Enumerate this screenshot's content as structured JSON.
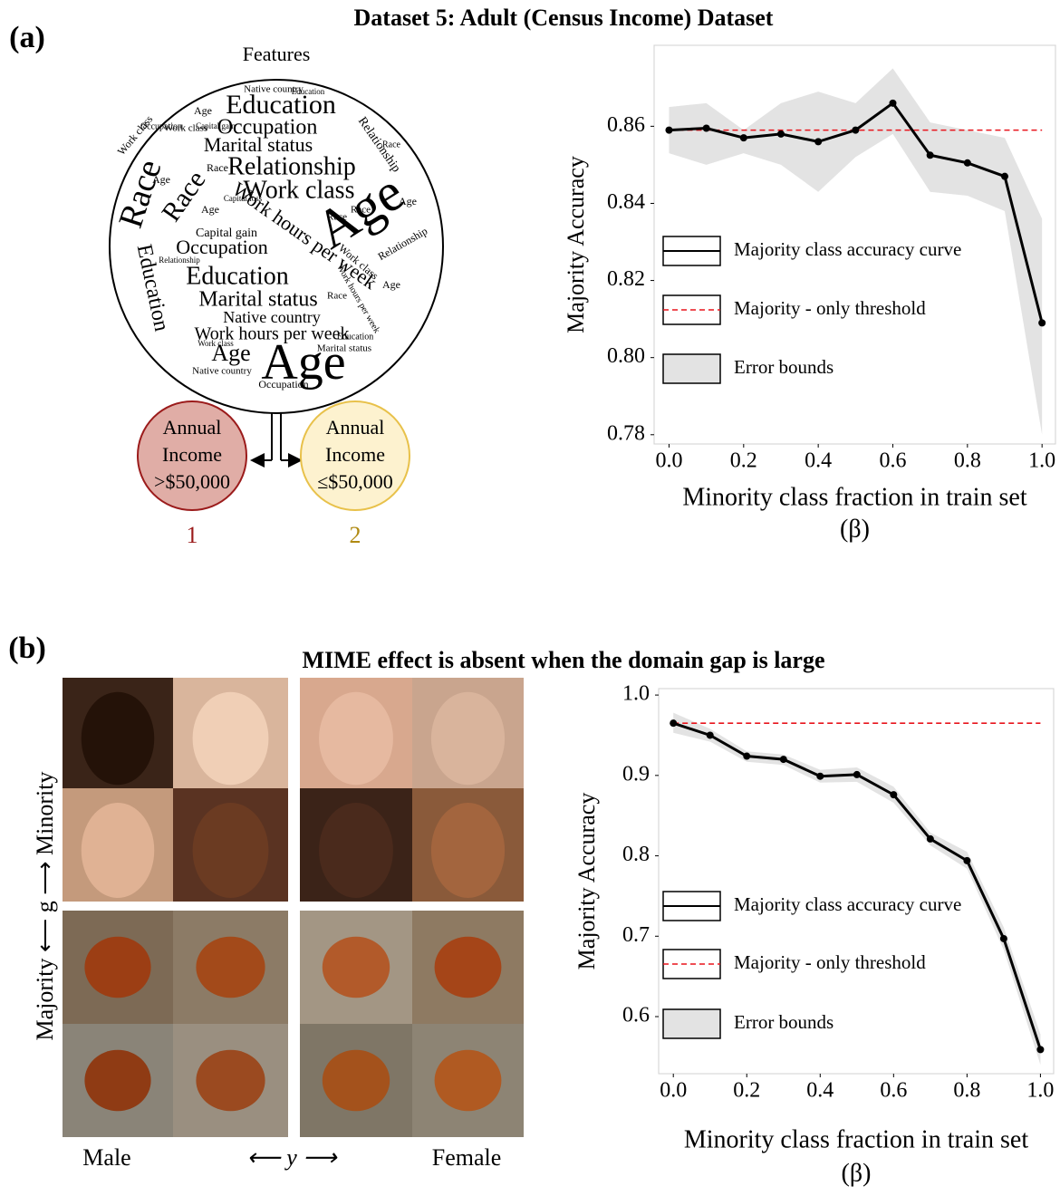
{
  "chart_data": [
    {
      "type": "line",
      "title": "Dataset 5: Adult (Census Income) Dataset",
      "ylabel": "Majority Accuracy",
      "xlabel": [
        "Minority class fraction in train set",
        "(β)"
      ],
      "x": [
        0.0,
        0.1,
        0.2,
        0.3,
        0.4,
        0.5,
        0.6,
        0.7,
        0.8,
        0.9,
        1.0
      ],
      "series": [
        {
          "name": "Majority class accuracy curve",
          "color": "#000000",
          "values": [
            0.859,
            0.8595,
            0.857,
            0.858,
            0.856,
            0.859,
            0.866,
            0.8525,
            0.8505,
            0.847,
            0.809
          ]
        }
      ],
      "threshold": {
        "name": "Majority - only threshold",
        "color": "#e8141c",
        "value": 0.859
      },
      "error_bounds": {
        "name": "Error bounds",
        "color": "#e3e3e3",
        "upper": [
          0.865,
          0.866,
          0.859,
          0.866,
          0.869,
          0.866,
          0.875,
          0.861,
          0.859,
          0.857,
          0.836
        ],
        "lower": [
          0.853,
          0.85,
          0.853,
          0.85,
          0.843,
          0.852,
          0.858,
          0.843,
          0.842,
          0.838,
          0.78
        ]
      },
      "xlim": [
        -0.04,
        1.036
      ],
      "ylim": [
        0.7776,
        0.881
      ],
      "xticks": [
        {
          "value": 0,
          "label": "0.0"
        },
        0.2,
        0.4,
        0.6,
        0.8,
        {
          "value": 1,
          "label": "1.0"
        }
      ],
      "yticks": [
        0.78,
        {
          "value": 0.8,
          "label": "0.80"
        },
        0.82,
        0.84,
        0.86
      ],
      "grid": false
    },
    {
      "type": "line",
      "title": "MIME effect is absent when the domain gap is large",
      "ylabel": "Majority Accuracy",
      "xlabel": [
        "Minority class fraction in train set",
        "(β)"
      ],
      "x": [
        0.0,
        0.1,
        0.2,
        0.3,
        0.4,
        0.5,
        0.6,
        0.7,
        0.8,
        0.9,
        1.0
      ],
      "series": [
        {
          "name": "Majority class accuracy curve",
          "color": "#000000",
          "values": [
            0.965,
            0.95,
            0.924,
            0.92,
            0.899,
            0.901,
            0.876,
            0.821,
            0.794,
            0.697,
            0.559
          ]
        }
      ],
      "threshold": {
        "name": "Majority - only threshold",
        "color": "#e8141c",
        "value": 0.965
      },
      "error_bounds": {
        "name": "Error bounds",
        "color": "#e3e3e3",
        "upper": [
          0.978,
          0.958,
          0.93,
          0.926,
          0.907,
          0.91,
          0.886,
          0.829,
          0.805,
          0.711,
          0.578
        ],
        "lower": [
          0.953,
          0.942,
          0.917,
          0.913,
          0.891,
          0.892,
          0.866,
          0.813,
          0.784,
          0.683,
          0.54
        ]
      },
      "xlim": [
        -0.04,
        1.036
      ],
      "ylim": [
        0.529,
        1.008
      ],
      "xticks": [
        {
          "value": 0,
          "label": "0.0"
        },
        0.2,
        0.4,
        0.6,
        0.8,
        {
          "value": 1,
          "label": "1.0"
        }
      ],
      "yticks": [
        0.6,
        0.7,
        0.8,
        0.9,
        {
          "value": 1,
          "label": "1.0"
        }
      ],
      "grid": false
    }
  ],
  "panel_a": {
    "label": "(a)",
    "cloud_title": "Features",
    "words": [
      "Education",
      "Occupation",
      "Marital status",
      "Relationship",
      "Work class",
      "Race",
      "Race",
      "Age",
      "Work hours per week",
      "Occupation",
      "Education",
      "Education",
      "Marital status",
      "Native country",
      "Work hours per week",
      "Age",
      "Age",
      "Native country",
      "Age",
      "Race",
      "Work class",
      "Capital gain",
      "Capital gain",
      "Relationship",
      "Age",
      "Race",
      "Race",
      "Age",
      "Capital loss",
      "Relationship",
      "Work class",
      "Native country",
      "Education",
      "Race",
      "Marital status",
      "Occupation",
      "Work class",
      "Age",
      "Work hours per week",
      "Relationship",
      "Education",
      "Occupation",
      "Race",
      "Age",
      "Work class"
    ],
    "classes": [
      {
        "lines": [
          "Annual",
          "Income",
          ">$50,000"
        ],
        "number": "1"
      },
      {
        "lines": [
          "Annual",
          "Income",
          "≤$50,000"
        ],
        "number": "2"
      }
    ]
  },
  "panel_b": {
    "label": "(b)",
    "g_axis": "Majority ⟵ g ⟶ Minority",
    "left_class": "Male",
    "y_axis": "⟵ y ⟶",
    "right_class": "Female"
  }
}
